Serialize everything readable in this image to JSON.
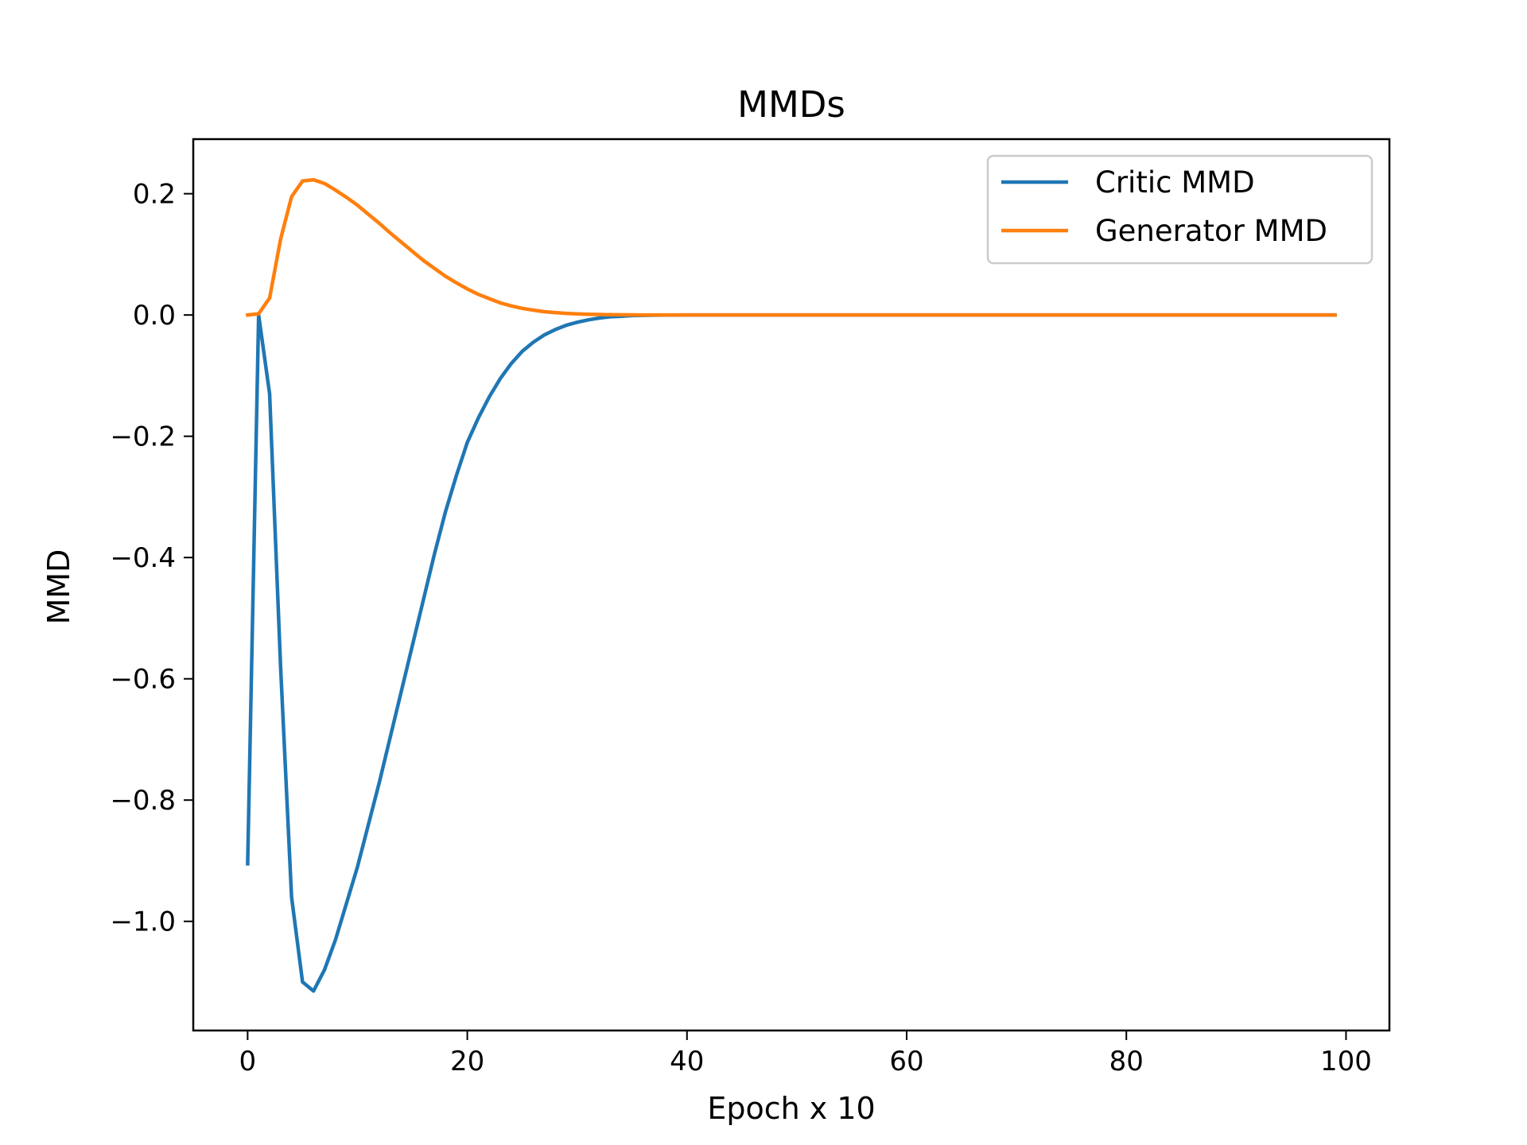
{
  "chart_data": {
    "type": "line",
    "title": "MMDs",
    "xlabel": "Epoch x 10",
    "ylabel": "MMD",
    "xlim": [
      -4.95,
      103.95
    ],
    "ylim": [
      -1.18,
      0.29
    ],
    "xticks": [
      0,
      20,
      40,
      60,
      80,
      100
    ],
    "xtick_labels": [
      "0",
      "20",
      "40",
      "60",
      "80",
      "100"
    ],
    "yticks": [
      0.2,
      0.0,
      -0.2,
      -0.4,
      -0.6,
      -0.8,
      -1.0
    ],
    "ytick_labels": [
      "0.2",
      "0.0",
      "−0.2",
      "−0.4",
      "−0.6",
      "−0.8",
      "−1.0"
    ],
    "grid": false,
    "legend_position": "top-right",
    "series": [
      {
        "name": "Critic MMD",
        "color": "#1f77b4",
        "x": [
          0,
          1,
          2,
          3,
          4,
          5,
          6,
          7,
          8,
          9,
          10,
          11,
          12,
          13,
          14,
          15,
          16,
          17,
          18,
          19,
          20,
          21,
          22,
          23,
          24,
          25,
          26,
          27,
          28,
          29,
          30,
          31,
          32,
          33,
          34,
          35,
          36,
          37,
          38,
          39,
          40,
          45,
          50,
          60,
          70,
          80,
          90,
          99
        ],
        "y": [
          -0.905,
          0.0,
          -0.13,
          -0.58,
          -0.96,
          -1.1,
          -1.115,
          -1.08,
          -1.03,
          -0.97,
          -0.91,
          -0.84,
          -0.77,
          -0.695,
          -0.62,
          -0.545,
          -0.47,
          -0.395,
          -0.325,
          -0.265,
          -0.21,
          -0.17,
          -0.135,
          -0.105,
          -0.08,
          -0.06,
          -0.045,
          -0.033,
          -0.024,
          -0.017,
          -0.012,
          -0.008,
          -0.005,
          -0.003,
          -0.002,
          -0.001,
          -0.0006,
          -0.0003,
          -0.0002,
          -0.0001,
          0.0,
          0.0,
          0.0,
          0.0,
          0.0,
          0.0,
          0.0,
          0.0
        ]
      },
      {
        "name": "Generator MMD",
        "color": "#ff7f0e",
        "x": [
          0,
          1,
          2,
          3,
          4,
          5,
          6,
          7,
          8,
          9,
          10,
          11,
          12,
          13,
          14,
          15,
          16,
          17,
          18,
          19,
          20,
          21,
          22,
          23,
          24,
          25,
          26,
          27,
          28,
          29,
          30,
          31,
          32,
          33,
          34,
          35,
          36,
          37,
          38,
          40,
          45,
          50,
          60,
          70,
          80,
          90,
          99
        ],
        "y": [
          0.0,
          0.002,
          0.028,
          0.125,
          0.195,
          0.221,
          0.223,
          0.217,
          0.206,
          0.194,
          0.181,
          0.166,
          0.151,
          0.135,
          0.12,
          0.105,
          0.09,
          0.077,
          0.064,
          0.053,
          0.043,
          0.034,
          0.027,
          0.02,
          0.015,
          0.011,
          0.008,
          0.0055,
          0.004,
          0.0027,
          0.0018,
          0.0012,
          0.0008,
          0.0005,
          0.0003,
          0.0002,
          0.0001,
          0.0001,
          0.0,
          0.0,
          0.0,
          0.0,
          0.0,
          0.0,
          0.0,
          0.0,
          0.0
        ]
      }
    ]
  }
}
